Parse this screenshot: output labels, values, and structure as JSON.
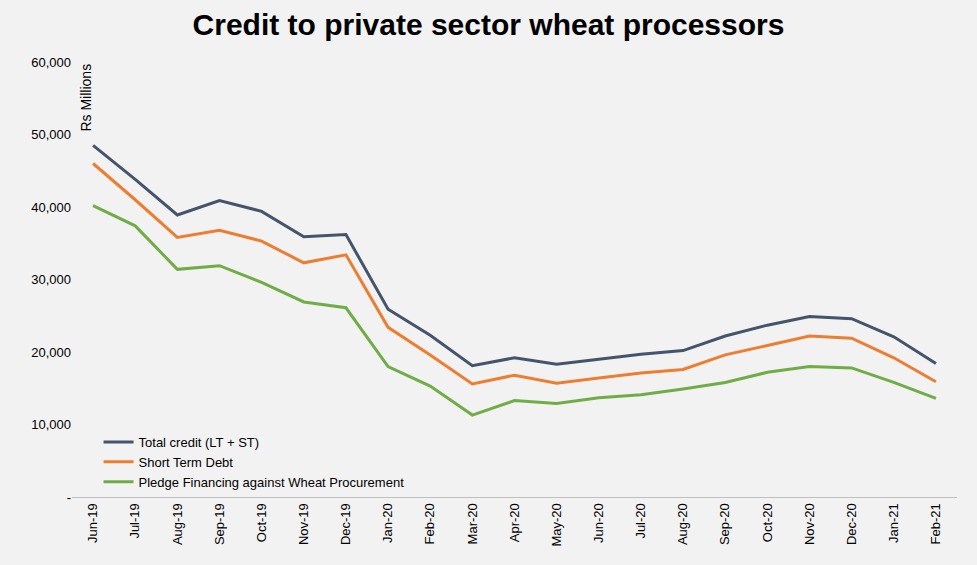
{
  "chart_data": {
    "type": "line",
    "title": "Credit to private sector wheat processors",
    "y_label": "Rs Millions",
    "categories": [
      "Jun-19",
      "Jul-19",
      "Aug-19",
      "Sep-19",
      "Oct-19",
      "Nov-19",
      "Dec-19",
      "Jan-20",
      "Feb-20",
      "Mar-20",
      "Apr-20",
      "May-20",
      "Jun-20",
      "Jul-20",
      "Aug-20",
      "Sep-20",
      "Oct-20",
      "Nov-20",
      "Dec-20",
      "Jan-21",
      "Feb-21"
    ],
    "series": [
      {
        "name": "Total credit (LT + ST)",
        "color": "#44546A",
        "values": [
          48500,
          43800,
          38900,
          40900,
          39400,
          35900,
          36200,
          25900,
          22300,
          18100,
          19200,
          18300,
          19000,
          19700,
          20200,
          22200,
          23700,
          24900,
          24600,
          22100,
          18400
        ]
      },
      {
        "name": "Short Term Debt",
        "color": "#ED7D31",
        "values": [
          46000,
          41000,
          35800,
          36800,
          35300,
          32300,
          33400,
          23400,
          19600,
          15600,
          16800,
          15700,
          16400,
          17100,
          17600,
          19600,
          20900,
          22200,
          21900,
          19200,
          15900
        ]
      },
      {
        "name": "Pledge Financing against Wheat Procurement",
        "color": "#70AD47",
        "values": [
          40200,
          37400,
          31400,
          31900,
          29600,
          26900,
          26100,
          18000,
          15300,
          11300,
          13300,
          12900,
          13700,
          14100,
          14900,
          15800,
          17200,
          18000,
          17800,
          15800,
          13600
        ]
      }
    ],
    "ylim": [
      0,
      60000
    ],
    "yticks": [
      {
        "value": 0,
        "label": "-"
      },
      {
        "value": 10000,
        "label": "10,000"
      },
      {
        "value": 20000,
        "label": "20,000"
      },
      {
        "value": 30000,
        "label": "30,000"
      },
      {
        "value": 40000,
        "label": "40,000"
      },
      {
        "value": 50000,
        "label": "50,000"
      },
      {
        "value": 60000,
        "label": "60,000"
      }
    ],
    "grid": false,
    "legend": "bottom left"
  }
}
